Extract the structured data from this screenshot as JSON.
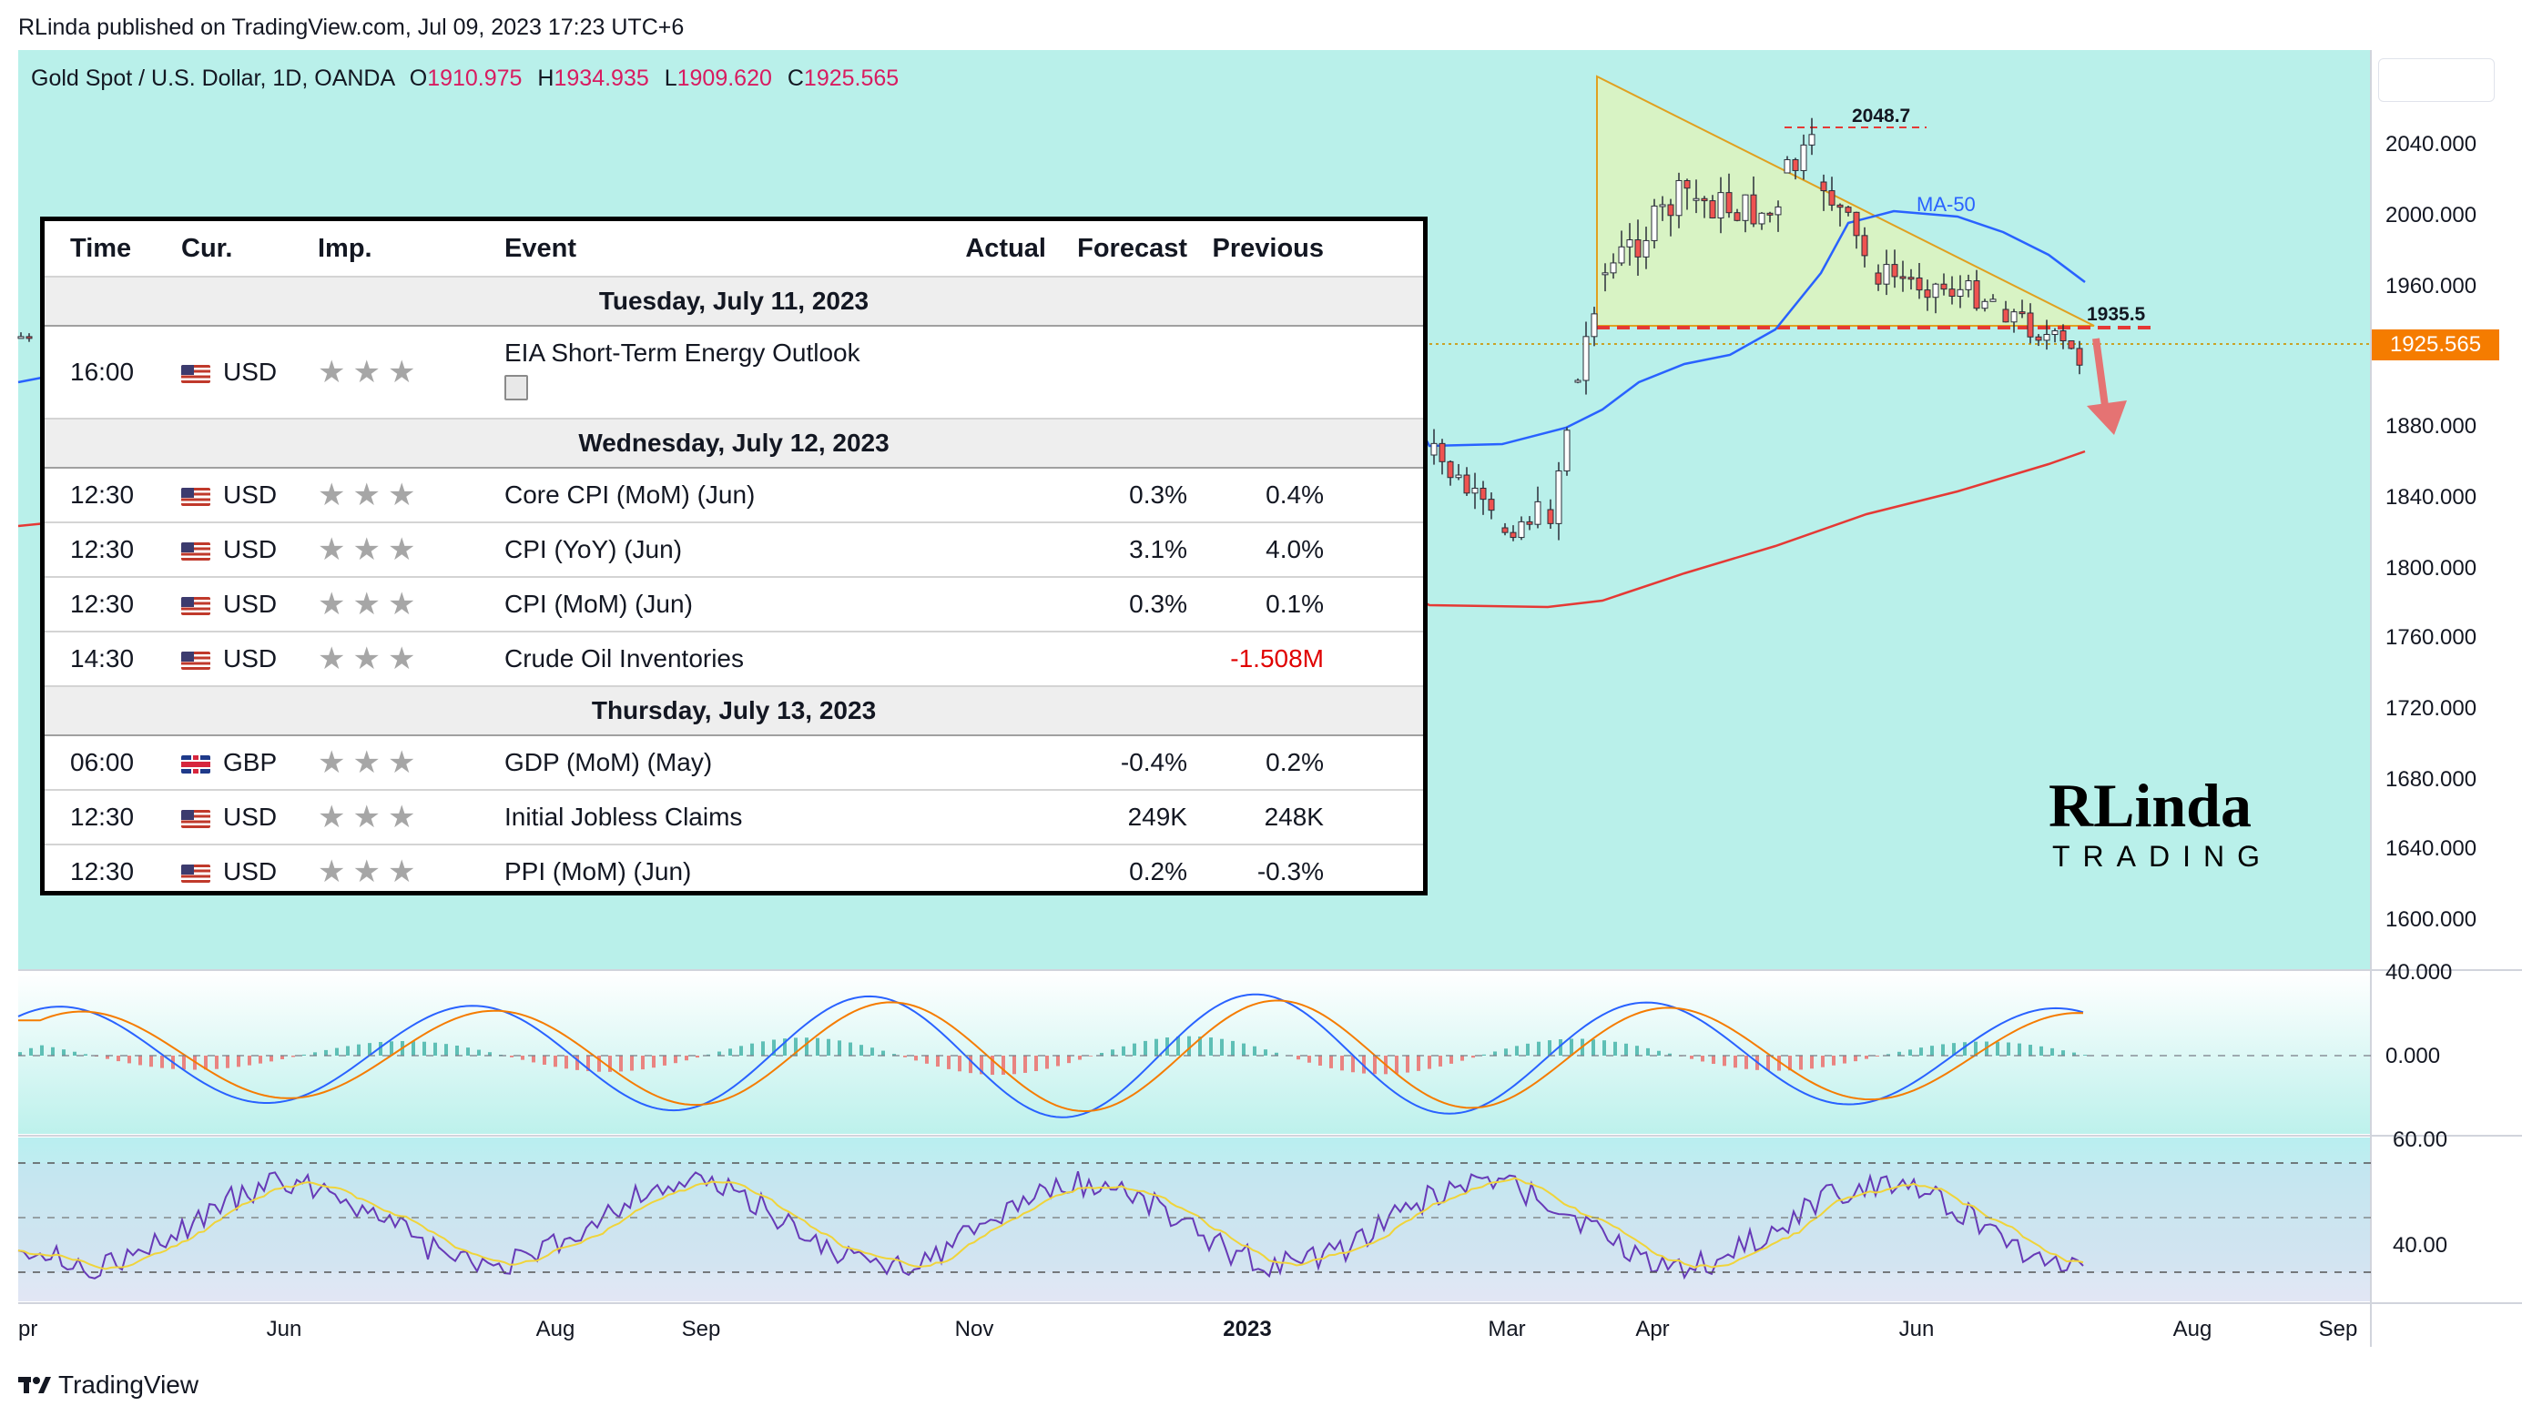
{
  "header": {
    "published_line": "RLinda published on TradingView.com, Jul 09, 2023 17:23 UTC+6"
  },
  "legend": {
    "symbol": "Gold Spot / U.S. Dollar, 1D, OANDA",
    "open_key": "O",
    "open": "1910.975",
    "high_key": "H",
    "high": "1934.935",
    "low_key": "L",
    "low": "1909.620",
    "close_key": "C",
    "close": "1925.565"
  },
  "price_axis": {
    "labels": [
      "2040.000",
      "2000.000",
      "1960.000",
      "1880.000",
      "1840.000",
      "1800.000",
      "1760.000",
      "1720.000",
      "1680.000",
      "1640.000",
      "1600.000"
    ],
    "current_price": "1925.565",
    "current_price_color": "#f57c00"
  },
  "macd_axis": {
    "labels": [
      "40.000",
      "0.000"
    ]
  },
  "rsi_axis": {
    "labels": [
      "60.00",
      "40.00"
    ]
  },
  "time_axis": {
    "labels": [
      "pr",
      "Jun",
      "Aug",
      "Sep",
      "Nov",
      "2023",
      "Mar",
      "Apr",
      "Jun",
      "Aug",
      "Sep"
    ]
  },
  "annotations": {
    "high_level": "2048.7",
    "support_level": "1935.5",
    "ma_label": "MA-50"
  },
  "logo": {
    "text_top": "RLinda",
    "text_bottom": "TRADING"
  },
  "calendar": {
    "headers": {
      "time": "Time",
      "cur": "Cur.",
      "imp": "Imp.",
      "event": "Event",
      "actual": "Actual",
      "forecast": "Forecast",
      "previous": "Previous"
    },
    "days": [
      {
        "date": "Tuesday, July 11, 2023",
        "events": [
          {
            "time": "16:00",
            "cur": "USD",
            "flag": "us",
            "stars": "★★★",
            "event": "EIA Short-Term Energy Outlook",
            "actual": "",
            "forecast": "",
            "previous": ""
          }
        ]
      },
      {
        "date": "Wednesday, July 12, 2023",
        "events": [
          {
            "time": "12:30",
            "cur": "USD",
            "flag": "us",
            "stars": "★★★",
            "event": "Core CPI (MoM) (Jun)",
            "actual": "",
            "forecast": "0.3%",
            "previous": "0.4%"
          },
          {
            "time": "12:30",
            "cur": "USD",
            "flag": "us",
            "stars": "★★★",
            "event": "CPI (YoY) (Jun)",
            "actual": "",
            "forecast": "3.1%",
            "previous": "4.0%"
          },
          {
            "time": "12:30",
            "cur": "USD",
            "flag": "us",
            "stars": "★★★",
            "event": "CPI (MoM) (Jun)",
            "actual": "",
            "forecast": "0.3%",
            "previous": "0.1%"
          },
          {
            "time": "14:30",
            "cur": "USD",
            "flag": "us",
            "stars": "★★★",
            "event": "Crude Oil Inventories",
            "actual": "",
            "forecast": "",
            "previous": "-1.508M"
          }
        ]
      },
      {
        "date": "Thursday, July 13, 2023",
        "events": [
          {
            "time": "06:00",
            "cur": "GBP",
            "flag": "gb",
            "stars": "★★★",
            "event": "GDP (MoM) (May)",
            "actual": "",
            "forecast": "-0.4%",
            "previous": "0.2%"
          },
          {
            "time": "12:30",
            "cur": "USD",
            "flag": "us",
            "stars": "★★★",
            "event": "Initial Jobless Claims",
            "actual": "",
            "forecast": "249K",
            "previous": "248K"
          },
          {
            "time": "12:30",
            "cur": "USD",
            "flag": "us",
            "stars": "★★★",
            "event": "PPI (MoM) (Jun)",
            "actual": "",
            "forecast": "0.2%",
            "previous": "-0.3%"
          }
        ]
      }
    ]
  },
  "footer": {
    "brand": "TradingView"
  },
  "colors": {
    "chart_bg": "#b9f0ea",
    "triangle_fill": "#d8f3c4",
    "ma50": "#2962ff",
    "ma200": "#e53935",
    "macd": "#2962ff",
    "signal": "#f57c00",
    "rsi": "#673ab7",
    "rsi_ma": "#f0d43a"
  }
}
